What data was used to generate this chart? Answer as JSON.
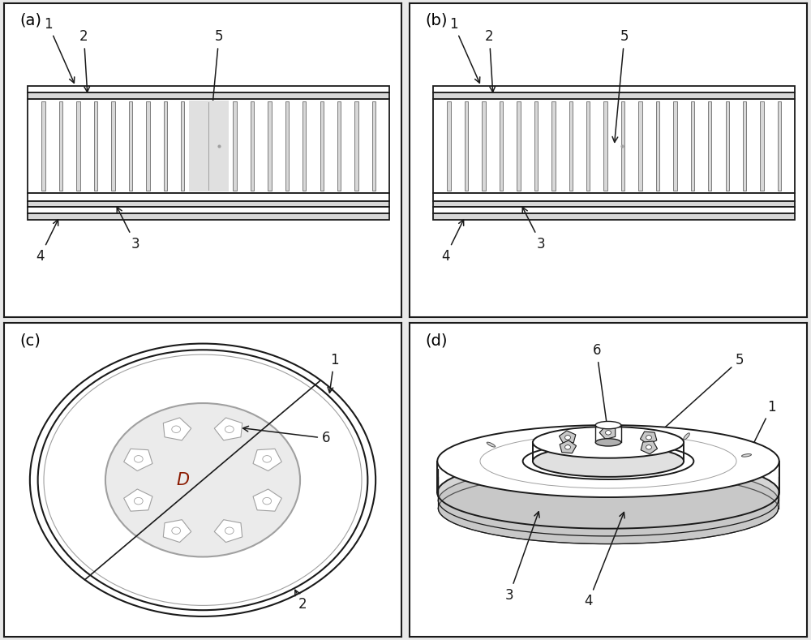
{
  "bg_color": "#e8e8e8",
  "panel_bg": "#ffffff",
  "line_color": "#1a1a1a",
  "gray_light": "#d8d8d8",
  "gray_mid": "#a0a0a0",
  "gray_dark": "#505050",
  "label_color": "#8B4513",
  "panel_labels": [
    "(a)",
    "(b)",
    "(c)",
    "(d)"
  ],
  "annotation_fontsize": 12,
  "panel_label_fontsize": 14
}
